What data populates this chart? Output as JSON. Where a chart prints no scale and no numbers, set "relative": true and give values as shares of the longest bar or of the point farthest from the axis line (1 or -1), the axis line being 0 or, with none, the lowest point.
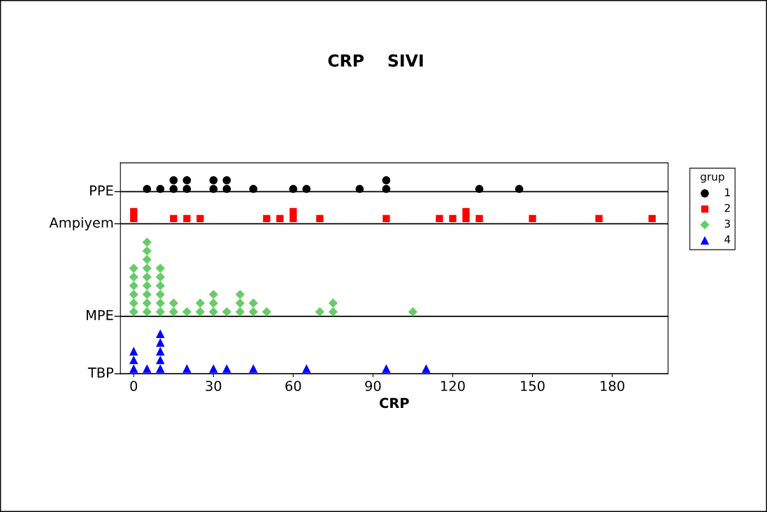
{
  "chart_data": {
    "type": "scatter",
    "title": "CRP    SIVI",
    "xlabel": "CRP",
    "legend_title": "grup",
    "legend": "right",
    "grid": false,
    "relative": true,
    "xlim": [
      -5,
      201
    ],
    "xticks": [
      0,
      30,
      60,
      90,
      120,
      150,
      180
    ],
    "ref_lines": [
      {
        "axis": "y",
        "value": 0,
        "label": "TBP",
        "color": "#000000"
      },
      {
        "axis": "y",
        "value": 0.297,
        "label": "MPE",
        "color": "#000000"
      },
      {
        "axis": "y",
        "value": 0.775,
        "label": "Ampiyem",
        "color": "#000000"
      },
      {
        "axis": "y",
        "value": 0.941,
        "label": "PPE",
        "color": "#000000"
      }
    ],
    "series": [
      {
        "name": "1",
        "color": "#000000",
        "marker": "circle",
        "x": [
          5,
          10,
          15,
          15,
          20,
          20,
          30,
          30,
          35,
          35,
          45,
          60,
          65,
          85,
          95,
          95,
          130,
          145
        ],
        "values": [
          0.955,
          0.955,
          0.955,
          1,
          0.955,
          1,
          0.955,
          1,
          0.955,
          1,
          0.955,
          0.955,
          0.955,
          0.955,
          0.955,
          1,
          0.955,
          0.955
        ]
      },
      {
        "name": "2",
        "color": "#ff0000",
        "marker": "square",
        "x": [
          0,
          0,
          15,
          20,
          25,
          50,
          55,
          60,
          60,
          70,
          95,
          115,
          120,
          125,
          125,
          130,
          150,
          175,
          195
        ],
        "values": [
          0.802,
          0.838,
          0.802,
          0.802,
          0.802,
          0.802,
          0.802,
          0.802,
          0.838,
          0.802,
          0.802,
          0.802,
          0.802,
          0.802,
          0.838,
          0.802,
          0.802,
          0.802,
          0.802
        ]
      },
      {
        "name": "3",
        "color": "#66cc66",
        "marker": "diamond",
        "x": [
          0,
          0,
          0,
          0,
          0,
          0,
          5,
          5,
          5,
          5,
          5,
          5,
          5,
          5,
          5,
          10,
          10,
          10,
          10,
          10,
          10,
          15,
          15,
          20,
          25,
          25,
          30,
          30,
          30,
          35,
          40,
          40,
          40,
          45,
          45,
          50,
          70,
          75,
          75,
          105
        ],
        "values": [
          0.32,
          0.365,
          0.41,
          0.455,
          0.5,
          0.545,
          0.32,
          0.365,
          0.41,
          0.455,
          0.5,
          0.545,
          0.59,
          0.635,
          0.68,
          0.32,
          0.365,
          0.41,
          0.455,
          0.5,
          0.545,
          0.32,
          0.365,
          0.32,
          0.32,
          0.365,
          0.32,
          0.365,
          0.41,
          0.32,
          0.32,
          0.365,
          0.41,
          0.32,
          0.365,
          0.32,
          0.32,
          0.32,
          0.365,
          0.32
        ]
      },
      {
        "name": "4",
        "color": "#0000ff",
        "marker": "triangle",
        "x": [
          0,
          0,
          0,
          5,
          10,
          10,
          10,
          10,
          10,
          20,
          30,
          35,
          45,
          65,
          95,
          110
        ],
        "values": [
          0.027,
          0.072,
          0.117,
          0.027,
          0.027,
          0.072,
          0.117,
          0.162,
          0.207,
          0.027,
          0.027,
          0.027,
          0.027,
          0.027,
          0.027,
          0.027
        ]
      }
    ]
  }
}
